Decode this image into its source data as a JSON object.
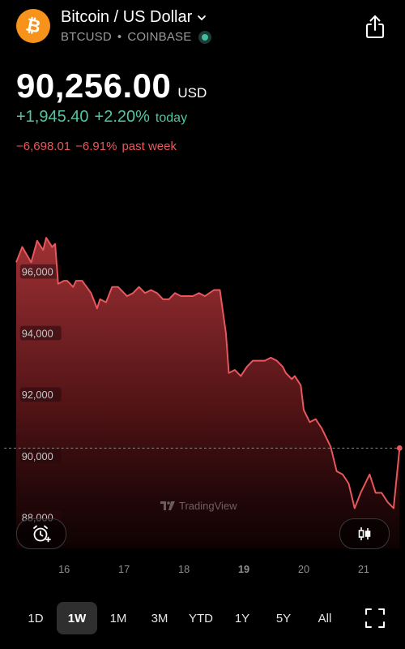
{
  "header": {
    "title": "Bitcoin / US Dollar",
    "symbol": "BTCUSD",
    "separator": "•",
    "exchange": "COINBASE",
    "icon": "bitcoin-icon",
    "brand_color": "#f7931a"
  },
  "price": {
    "value": "90,256.00",
    "currency": "USD"
  },
  "change_today": {
    "abs": "+1,945.40",
    "pct": "+2.20%",
    "label": "today",
    "color": "#53c79c"
  },
  "change_week": {
    "abs": "−6,698.01",
    "pct": "−6.91%",
    "label": "past week",
    "color": "#e8585c"
  },
  "watermark": "TradingView",
  "chart_data": {
    "type": "area",
    "ylim": [
      87000,
      98500
    ],
    "y_ticks": [
      96000,
      94000,
      92000,
      90000,
      88000
    ],
    "y_tick_labels": [
      "96,000",
      "94,000",
      "92,000",
      "90,000",
      "88,000"
    ],
    "x_ticks": [
      "16",
      "17",
      "18",
      "19",
      "20",
      "21"
    ],
    "bold_x_tick": "19",
    "current_value": 90256,
    "line_color": "#e8585c",
    "points": [
      [
        15.2,
        96300
      ],
      [
        15.3,
        96800
      ],
      [
        15.45,
        96300
      ],
      [
        15.55,
        97000
      ],
      [
        15.65,
        96700
      ],
      [
        15.7,
        97100
      ],
      [
        15.8,
        96800
      ],
      [
        15.85,
        96900
      ],
      [
        15.9,
        95600
      ],
      [
        16.0,
        95700
      ],
      [
        16.05,
        95700
      ],
      [
        16.15,
        95500
      ],
      [
        16.2,
        95700
      ],
      [
        16.3,
        95700
      ],
      [
        16.45,
        95300
      ],
      [
        16.55,
        94800
      ],
      [
        16.6,
        95100
      ],
      [
        16.7,
        95000
      ],
      [
        16.8,
        95500
      ],
      [
        16.9,
        95500
      ],
      [
        17.0,
        95300
      ],
      [
        17.05,
        95200
      ],
      [
        17.15,
        95300
      ],
      [
        17.25,
        95500
      ],
      [
        17.35,
        95300
      ],
      [
        17.45,
        95400
      ],
      [
        17.55,
        95300
      ],
      [
        17.65,
        95100
      ],
      [
        17.75,
        95100
      ],
      [
        17.85,
        95300
      ],
      [
        17.95,
        95200
      ],
      [
        18.05,
        95200
      ],
      [
        18.15,
        95200
      ],
      [
        18.25,
        95300
      ],
      [
        18.35,
        95200
      ],
      [
        18.5,
        95400
      ],
      [
        18.6,
        95400
      ],
      [
        18.7,
        94000
      ],
      [
        18.75,
        92700
      ],
      [
        18.85,
        92800
      ],
      [
        18.95,
        92600
      ],
      [
        19.05,
        92900
      ],
      [
        19.15,
        93100
      ],
      [
        19.25,
        93100
      ],
      [
        19.35,
        93100
      ],
      [
        19.45,
        93200
      ],
      [
        19.55,
        93100
      ],
      [
        19.65,
        92900
      ],
      [
        19.7,
        92700
      ],
      [
        19.8,
        92500
      ],
      [
        19.85,
        92600
      ],
      [
        19.95,
        92300
      ],
      [
        20.0,
        91500
      ],
      [
        20.1,
        91100
      ],
      [
        20.2,
        91200
      ],
      [
        20.3,
        90900
      ],
      [
        20.45,
        90300
      ],
      [
        20.55,
        89500
      ],
      [
        20.65,
        89400
      ],
      [
        20.75,
        89100
      ],
      [
        20.85,
        88300
      ],
      [
        20.95,
        88800
      ],
      [
        21.1,
        89400
      ],
      [
        21.2,
        88800
      ],
      [
        21.3,
        88800
      ],
      [
        21.4,
        88500
      ],
      [
        21.5,
        88300
      ],
      [
        21.6,
        90256
      ]
    ]
  },
  "timeframes": [
    "1D",
    "1W",
    "1M",
    "3M",
    "YTD",
    "1Y",
    "5Y",
    "All"
  ],
  "active_timeframe": "1W"
}
